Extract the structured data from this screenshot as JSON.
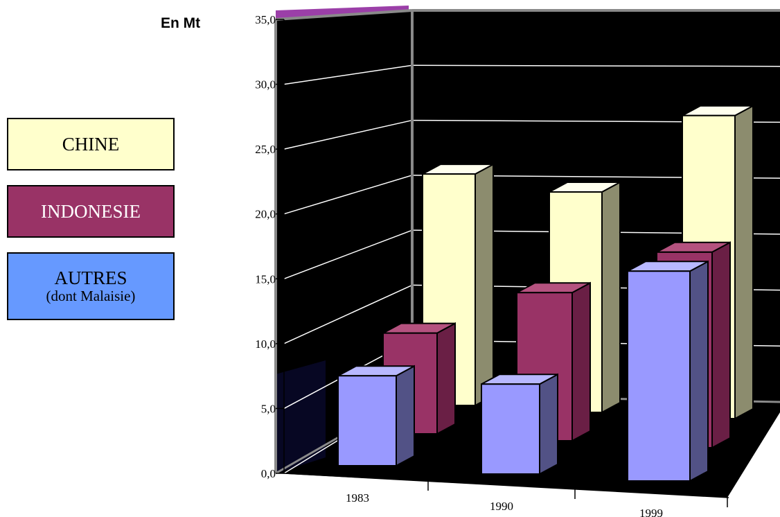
{
  "chart_data": {
    "type": "bar",
    "title": "",
    "unit_label": "En Mt",
    "categories": [
      "1983",
      "1990",
      "1999"
    ],
    "series": [
      {
        "name": "CHINE",
        "values": [
          21.0,
          20.0,
          27.5
        ],
        "color": "#FFFFCC"
      },
      {
        "name": "INDONESIE",
        "values": [
          8.5,
          12.5,
          16.5
        ],
        "color": "#993366"
      },
      {
        "name": "AUTRES",
        "sublabel": "(dont Malaisie)",
        "values": [
          7.5,
          7.5,
          17.5
        ],
        "color": "#9999FF"
      }
    ],
    "y_ticks": [
      "0,0",
      "5,0",
      "10,0",
      "15,0",
      "20,0",
      "25,0",
      "30,0",
      "35,0"
    ],
    "ylim": [
      0,
      35
    ],
    "grid": true,
    "legend_position": "left",
    "wall_color": "#000000"
  }
}
